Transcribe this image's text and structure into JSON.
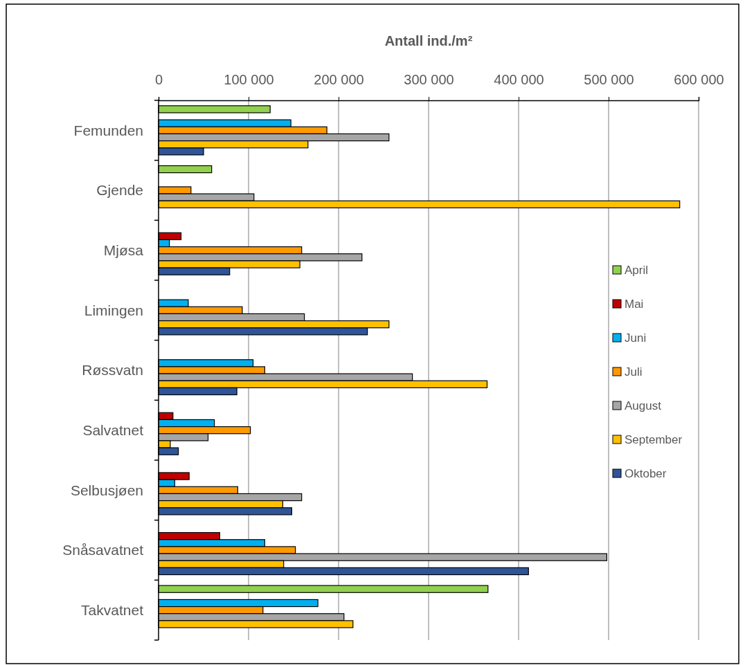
{
  "chart_data": {
    "type": "bar",
    "orientation": "horizontal",
    "title": "Antall ind./m²",
    "categories": [
      "Femunden",
      "Gjende",
      "Mjøsa",
      "Limingen",
      "Røssvatn",
      "Salvatnet",
      "Selbusjøen",
      "Snåsavatnet",
      "Takvatnet"
    ],
    "series": [
      {
        "name": "April",
        "color": "#92d050",
        "values": [
          124000,
          59000,
          null,
          null,
          null,
          null,
          null,
          null,
          366000
        ]
      },
      {
        "name": "Mai",
        "color": "#c00000",
        "values": [
          null,
          null,
          25000,
          null,
          null,
          16000,
          34000,
          68000,
          null
        ]
      },
      {
        "name": "Juni",
        "color": "#00b0f0",
        "values": [
          147000,
          null,
          12000,
          33000,
          105000,
          62000,
          18000,
          118000,
          177000
        ]
      },
      {
        "name": "Juli",
        "color": "#ff9900",
        "values": [
          187000,
          36000,
          159000,
          93000,
          118000,
          102000,
          88000,
          152000,
          116000
        ]
      },
      {
        "name": "August",
        "color": "#a6a6a6",
        "values": [
          256000,
          106000,
          226000,
          162000,
          282000,
          55000,
          159000,
          498000,
          206000
        ]
      },
      {
        "name": "September",
        "color": "#ffc000",
        "values": [
          166000,
          579000,
          157000,
          256000,
          365000,
          13000,
          138000,
          139000,
          216000
        ]
      },
      {
        "name": "Oktober",
        "color": "#2f5597",
        "values": [
          50000,
          null,
          79000,
          232000,
          87000,
          22000,
          148000,
          411000,
          null
        ]
      }
    ],
    "xlim": [
      0,
      600000
    ],
    "xticks": [
      0,
      {
        "value": 100000,
        "label": "100 000"
      },
      {
        "value": 200000,
        "label": "200 000"
      },
      {
        "value": 300000,
        "label": "300 000"
      },
      {
        "value": 400000,
        "label": "400 000"
      },
      {
        "value": 500000,
        "label": "500 000"
      },
      {
        "value": 600000,
        "label": "600 000"
      }
    ],
    "grid": "x",
    "legend": "right"
  }
}
